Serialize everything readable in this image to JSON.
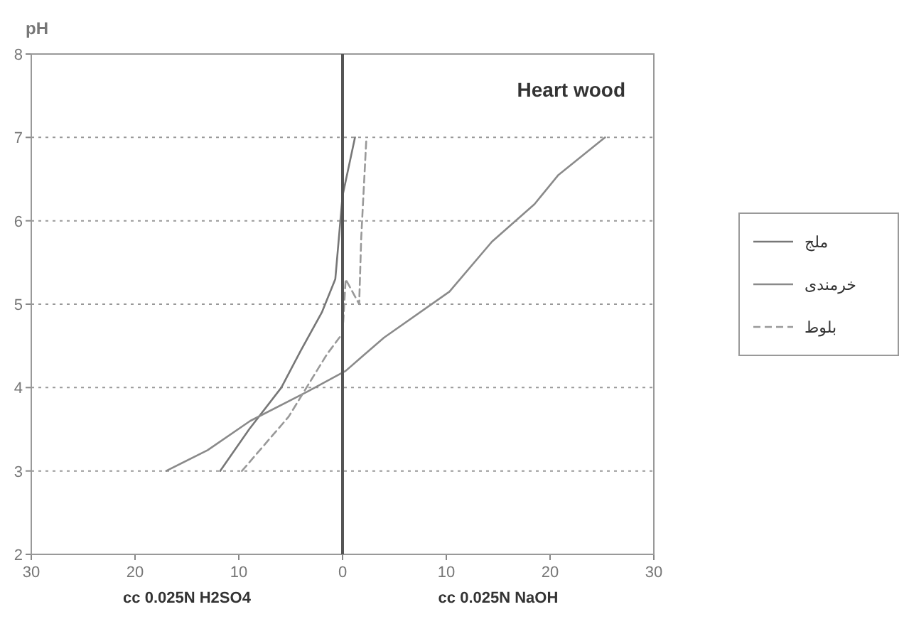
{
  "chart_data": {
    "type": "line",
    "title": "Heart wood",
    "ylabel": "pH",
    "annotations": [
      "cc 0.025N H2SO4",
      "cc 0.025N NaOH"
    ],
    "xlim": [
      -30,
      30
    ],
    "xticks": [
      {
        "value": -30,
        "label": "30"
      },
      {
        "value": -20,
        "label": "20"
      },
      {
        "value": -10,
        "label": "10"
      },
      0,
      10,
      20,
      30
    ],
    "ylim": [
      2,
      8
    ],
    "yticks": [
      2,
      3,
      4,
      5,
      6,
      7,
      8
    ],
    "ref_lines": [
      {
        "axis": "x",
        "value": 0,
        "color": "#555555"
      }
    ],
    "grid": "y",
    "legend": "right",
    "series": [
      {
        "name": "ملج",
        "color": "#777777",
        "line_style": "solid",
        "x": [
          -11.8,
          -9,
          -5.9,
          -4,
          -2,
          -0.7,
          0,
          1.2
        ],
        "values": [
          3,
          3.5,
          4,
          4.45,
          4.9,
          5.3,
          6.3,
          7.0
        ]
      },
      {
        "name": "خرمندی",
        "color": "#8a8a8a",
        "line_style": "solid",
        "x": [
          -17,
          -13,
          -8.9,
          -3.4,
          0.3,
          4,
          10.3,
          14.4,
          18.5,
          20.8,
          25.3
        ],
        "values": [
          3,
          3.25,
          3.6,
          3.95,
          4.2,
          4.6,
          5.15,
          5.75,
          6.2,
          6.55,
          7.0
        ]
      },
      {
        "name": "بلوط",
        "color": "#999999",
        "line_style": "dashed",
        "x": [
          -9.7,
          -5.2,
          -1.5,
          0,
          0.3,
          1.6,
          1.8,
          2.3
        ],
        "values": [
          3,
          3.65,
          4.4,
          4.65,
          5.3,
          5.0,
          5.8,
          7.0
        ]
      }
    ]
  }
}
